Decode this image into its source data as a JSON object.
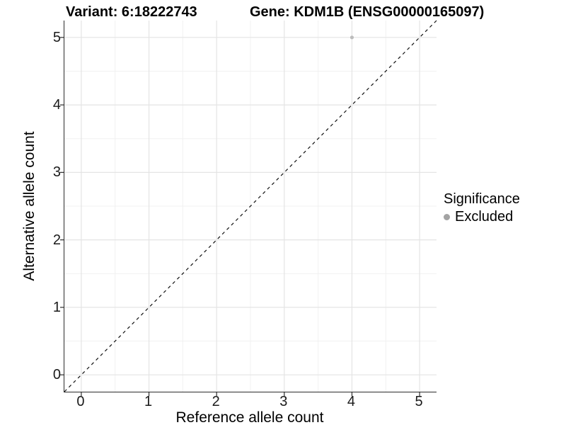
{
  "chart_data": {
    "type": "scatter",
    "title_left": "Variant: 6:18222743",
    "title_right": "Gene: KDM1B (ENSG00000165097)",
    "xlabel": "Reference allele count",
    "ylabel": "Alternative allele count",
    "xlim": [
      -0.25,
      5.25
    ],
    "ylim": [
      -0.25,
      5.25
    ],
    "xticks": [
      0,
      1,
      2,
      3,
      4,
      5
    ],
    "yticks": [
      0,
      1,
      2,
      3,
      4,
      5
    ],
    "grid": true,
    "series": [
      {
        "name": "Excluded",
        "color": "#bcbcbc",
        "points": [
          {
            "x": 4,
            "y": 5
          }
        ]
      }
    ],
    "reference_line": {
      "type": "identity",
      "style": "dashed",
      "color": "#111111"
    },
    "legend": {
      "position": "right",
      "title": "Significance",
      "entries": [
        {
          "label": "Excluded",
          "color": "#a3a3a3"
        }
      ]
    },
    "colors": {
      "major_grid": "#e4e4e4",
      "minor_grid": "#f1f1f1",
      "axis_line": "#2b2b2b",
      "tick_mark": "#2b2b2b"
    }
  }
}
